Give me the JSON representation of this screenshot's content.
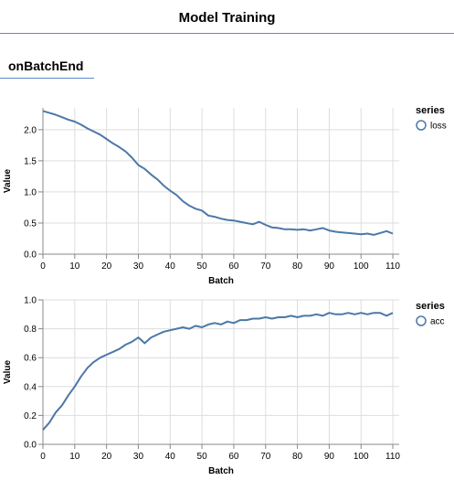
{
  "header": {
    "title": "Model Training"
  },
  "tab": {
    "label": "onBatchEnd"
  },
  "colors": {
    "accent": "#5a8bd0",
    "series": "#4c78a8",
    "grid": "#dddddd"
  },
  "chart_data": [
    {
      "type": "line",
      "xlabel": "Batch",
      "ylabel": "Value",
      "xlim": [
        0,
        112
      ],
      "ylim": [
        0,
        2.35
      ],
      "xticks": [
        0,
        10,
        20,
        30,
        40,
        50,
        60,
        70,
        80,
        90,
        100,
        110
      ],
      "yticks": [
        0,
        0.5,
        1.0,
        1.5,
        2.0
      ],
      "ytick_labels": [
        "0.0",
        "0.5",
        "1.0",
        "1.5",
        "2.0"
      ],
      "grid": true,
      "legend": {
        "title": "series",
        "position": "right"
      },
      "series": [
        {
          "name": "loss",
          "x": [
            0,
            2,
            4,
            6,
            8,
            10,
            12,
            14,
            16,
            18,
            20,
            22,
            24,
            26,
            28,
            30,
            32,
            34,
            36,
            38,
            40,
            42,
            44,
            46,
            48,
            50,
            52,
            54,
            56,
            58,
            60,
            62,
            64,
            66,
            68,
            70,
            72,
            74,
            76,
            78,
            80,
            82,
            84,
            86,
            88,
            90,
            92,
            94,
            96,
            98,
            100,
            102,
            104,
            106,
            108,
            110
          ],
          "y": [
            2.3,
            2.27,
            2.24,
            2.2,
            2.16,
            2.13,
            2.08,
            2.02,
            1.97,
            1.92,
            1.85,
            1.78,
            1.72,
            1.65,
            1.55,
            1.43,
            1.37,
            1.28,
            1.2,
            1.1,
            1.02,
            0.95,
            0.85,
            0.78,
            0.73,
            0.7,
            0.62,
            0.6,
            0.57,
            0.55,
            0.54,
            0.52,
            0.5,
            0.48,
            0.52,
            0.47,
            0.43,
            0.42,
            0.4,
            0.4,
            0.39,
            0.4,
            0.38,
            0.4,
            0.42,
            0.38,
            0.36,
            0.35,
            0.34,
            0.33,
            0.32,
            0.33,
            0.31,
            0.34,
            0.37,
            0.33
          ]
        }
      ]
    },
    {
      "type": "line",
      "xlabel": "Batch",
      "ylabel": "Value",
      "xlim": [
        0,
        112
      ],
      "ylim": [
        0,
        1.0
      ],
      "xticks": [
        0,
        10,
        20,
        30,
        40,
        50,
        60,
        70,
        80,
        90,
        100,
        110
      ],
      "yticks": [
        0,
        0.2,
        0.4,
        0.6,
        0.8,
        1.0
      ],
      "ytick_labels": [
        "0.0",
        "0.2",
        "0.4",
        "0.6",
        "0.8",
        "1.0"
      ],
      "grid": true,
      "legend": {
        "title": "series",
        "position": "right"
      },
      "series": [
        {
          "name": "acc",
          "x": [
            0,
            2,
            4,
            6,
            8,
            10,
            12,
            14,
            16,
            18,
            20,
            22,
            24,
            26,
            28,
            30,
            32,
            34,
            36,
            38,
            40,
            42,
            44,
            46,
            48,
            50,
            52,
            54,
            56,
            58,
            60,
            62,
            64,
            66,
            68,
            70,
            72,
            74,
            76,
            78,
            80,
            82,
            84,
            86,
            88,
            90,
            92,
            94,
            96,
            98,
            100,
            102,
            104,
            106,
            108,
            110
          ],
          "y": [
            0.1,
            0.15,
            0.22,
            0.27,
            0.34,
            0.4,
            0.47,
            0.53,
            0.57,
            0.6,
            0.62,
            0.64,
            0.66,
            0.69,
            0.71,
            0.74,
            0.7,
            0.74,
            0.76,
            0.78,
            0.79,
            0.8,
            0.81,
            0.8,
            0.82,
            0.81,
            0.83,
            0.84,
            0.83,
            0.85,
            0.84,
            0.86,
            0.86,
            0.87,
            0.87,
            0.88,
            0.87,
            0.88,
            0.88,
            0.89,
            0.88,
            0.89,
            0.89,
            0.9,
            0.89,
            0.91,
            0.9,
            0.9,
            0.91,
            0.9,
            0.91,
            0.9,
            0.91,
            0.91,
            0.89,
            0.91
          ]
        }
      ]
    }
  ]
}
